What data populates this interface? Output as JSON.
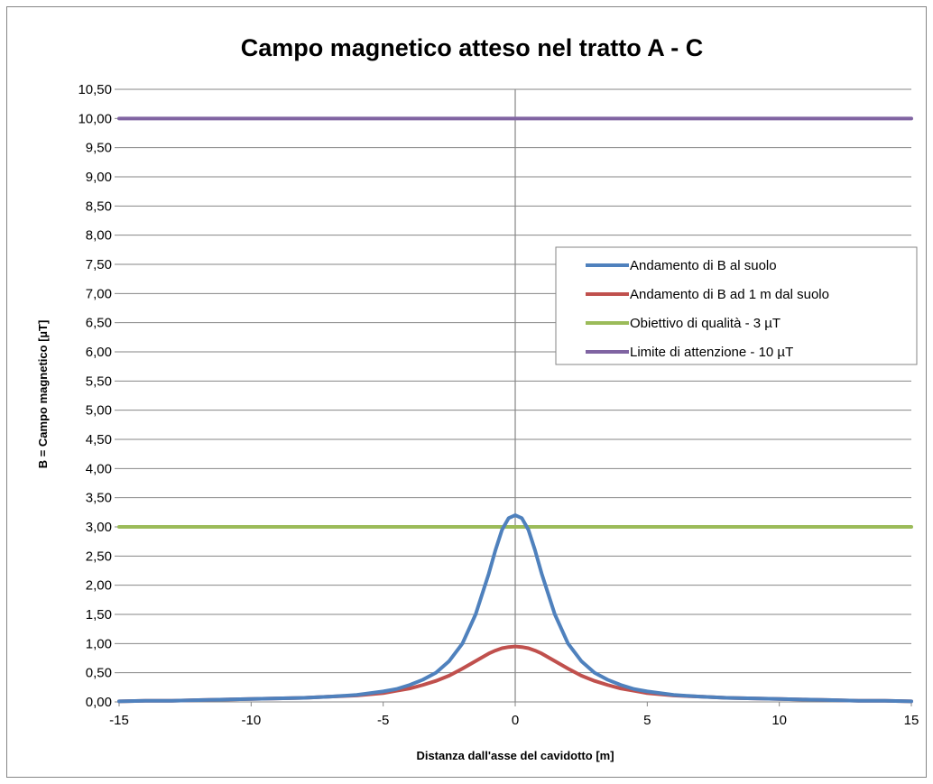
{
  "chart_data": {
    "type": "line",
    "title": "Campo magnetico atteso nel tratto A - C",
    "xlabel": "Distanza dall'asse del cavidotto [m]",
    "ylabel": "B = Campo magnetico [µT]",
    "xlim": [
      -15,
      15
    ],
    "ylim": [
      0,
      10.5
    ],
    "x_ticks": [
      "-15",
      "-10",
      "-5",
      "0",
      "5",
      "10",
      "15"
    ],
    "x_tick_values": [
      -15,
      -10,
      -5,
      0,
      5,
      10,
      15
    ],
    "y_ticks": [
      "0,00",
      "0,50",
      "1,00",
      "1,50",
      "2,00",
      "2,50",
      "3,00",
      "3,50",
      "4,00",
      "4,50",
      "5,00",
      "5,50",
      "6,00",
      "6,50",
      "7,00",
      "7,50",
      "8,00",
      "8,50",
      "9,00",
      "9,50",
      "10,00",
      "10,50"
    ],
    "y_tick_values": [
      0,
      0.5,
      1,
      1.5,
      2,
      2.5,
      3,
      3.5,
      4,
      4.5,
      5,
      5.5,
      6,
      6.5,
      7,
      7.5,
      8,
      8.5,
      9,
      9.5,
      10,
      10.5
    ],
    "grid": "horizontal",
    "legend_position": "right",
    "x": [
      -15,
      -14,
      -13,
      -12,
      -11,
      -10,
      -9,
      -8,
      -7,
      -6,
      -5,
      -4.5,
      -4,
      -3.5,
      -3,
      -2.5,
      -2,
      -1.5,
      -1,
      -0.75,
      -0.5,
      -0.25,
      0,
      0.25,
      0.5,
      0.75,
      1,
      1.5,
      2,
      2.5,
      3,
      3.5,
      4,
      4.5,
      5,
      6,
      7,
      8,
      9,
      10,
      11,
      12,
      13,
      14,
      15
    ],
    "series": [
      {
        "name": "Andamento di B al suolo",
        "color": "#4f81bd",
        "values": [
          0.01,
          0.02,
          0.02,
          0.03,
          0.04,
          0.05,
          0.06,
          0.07,
          0.09,
          0.12,
          0.18,
          0.22,
          0.29,
          0.38,
          0.5,
          0.7,
          1.0,
          1.5,
          2.2,
          2.6,
          2.95,
          3.15,
          3.2,
          3.15,
          2.95,
          2.6,
          2.2,
          1.5,
          1.0,
          0.7,
          0.5,
          0.38,
          0.29,
          0.22,
          0.18,
          0.12,
          0.09,
          0.07,
          0.06,
          0.05,
          0.04,
          0.03,
          0.02,
          0.02,
          0.01
        ]
      },
      {
        "name": "Andamento di B ad 1 m dal suolo",
        "color": "#c0504d",
        "values": [
          0.01,
          0.02,
          0.02,
          0.03,
          0.04,
          0.05,
          0.06,
          0.07,
          0.09,
          0.11,
          0.15,
          0.19,
          0.23,
          0.29,
          0.36,
          0.45,
          0.57,
          0.7,
          0.83,
          0.88,
          0.92,
          0.94,
          0.95,
          0.94,
          0.92,
          0.88,
          0.83,
          0.7,
          0.57,
          0.45,
          0.36,
          0.29,
          0.23,
          0.19,
          0.15,
          0.11,
          0.09,
          0.07,
          0.06,
          0.05,
          0.04,
          0.03,
          0.02,
          0.02,
          0.01
        ]
      },
      {
        "name": "Obiettivo di qualità - 3 µT",
        "color": "#9bbb59",
        "values": [
          3,
          3,
          3,
          3,
          3,
          3,
          3,
          3,
          3,
          3,
          3,
          3,
          3,
          3,
          3,
          3,
          3,
          3,
          3,
          3,
          3,
          3,
          3,
          3,
          3,
          3,
          3,
          3,
          3,
          3,
          3,
          3,
          3,
          3,
          3,
          3,
          3,
          3,
          3,
          3,
          3,
          3,
          3,
          3,
          3
        ]
      },
      {
        "name": "Limite di attenzione - 10 µT",
        "color": "#8064a2",
        "values": [
          10,
          10,
          10,
          10,
          10,
          10,
          10,
          10,
          10,
          10,
          10,
          10,
          10,
          10,
          10,
          10,
          10,
          10,
          10,
          10,
          10,
          10,
          10,
          10,
          10,
          10,
          10,
          10,
          10,
          10,
          10,
          10,
          10,
          10,
          10,
          10,
          10,
          10,
          10,
          10,
          10,
          10,
          10,
          10,
          10
        ]
      }
    ]
  }
}
